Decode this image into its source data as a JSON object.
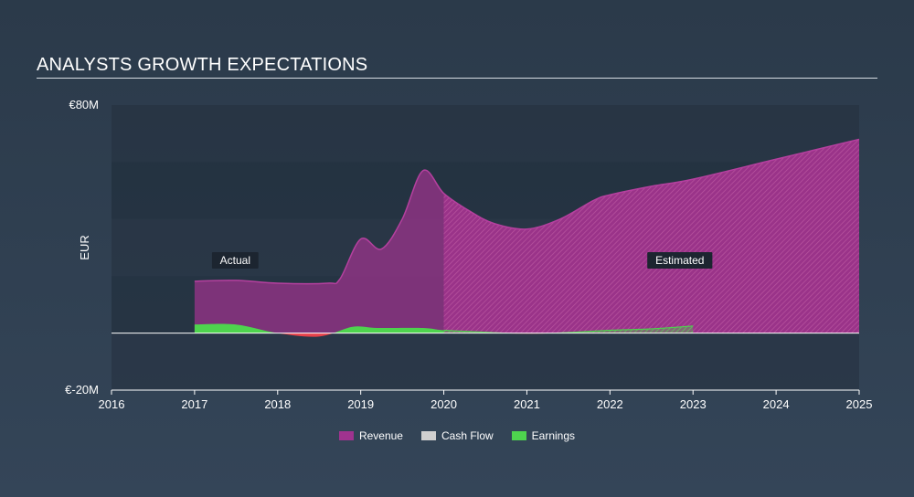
{
  "header": {
    "title": "ANALYSTS GROWTH EXPECTATIONS"
  },
  "colors": {
    "revenue": "#a0338f",
    "cash_flow": "#cfcfcf",
    "earnings": "#4ed34e",
    "negative": "#e8424a"
  },
  "chart_data": {
    "type": "area",
    "title": "ANALYSTS GROWTH EXPECTATIONS",
    "ylabel": "EUR",
    "xlabel": "",
    "xlim": [
      2016,
      2025
    ],
    "ylim": [
      -20,
      80
    ],
    "y_tick_labels": [
      {
        "value": 80,
        "label": "€80M"
      },
      {
        "value": -20,
        "label": "€-20M"
      }
    ],
    "x_ticks": [
      2016,
      2017,
      2018,
      2019,
      2020,
      2021,
      2022,
      2023,
      2024,
      2025
    ],
    "actual_end": 2020,
    "annotations": [
      {
        "label": "Actual",
        "x": 2017.5,
        "y": 25.5
      },
      {
        "label": "Estimated",
        "x": 2022.5,
        "y": 25.5
      }
    ],
    "series": [
      {
        "name": "Revenue",
        "points": [
          [
            2017,
            18.2
          ],
          [
            2017.5,
            18.5
          ],
          [
            2018,
            17.5
          ],
          [
            2018.6,
            17.5
          ],
          [
            2018.75,
            19
          ],
          [
            2019,
            33
          ],
          [
            2019.25,
            29.5
          ],
          [
            2019.5,
            40
          ],
          [
            2019.75,
            57
          ],
          [
            2020,
            49
          ],
          [
            2020.3,
            43
          ],
          [
            2020.6,
            38.5
          ],
          [
            2021,
            36.5
          ],
          [
            2021.4,
            40
          ],
          [
            2021.8,
            46.5
          ],
          [
            2022,
            48.5
          ],
          [
            2022.5,
            51.5
          ],
          [
            2023,
            54
          ],
          [
            2024,
            61
          ],
          [
            2025,
            68
          ]
        ]
      },
      {
        "name": "Cash Flow",
        "points": []
      },
      {
        "name": "Earnings",
        "points": [
          [
            2017,
            3
          ],
          [
            2017.5,
            3
          ],
          [
            2018,
            0
          ],
          [
            2018.5,
            -1.2
          ],
          [
            2018.9,
            2.2
          ],
          [
            2019.2,
            1.8
          ],
          [
            2019.75,
            1.8
          ],
          [
            2020,
            1
          ],
          [
            2020.5,
            0.3
          ],
          [
            2021,
            -0.3
          ],
          [
            2021.5,
            0.2
          ],
          [
            2022,
            1
          ],
          [
            2022.5,
            1.5
          ],
          [
            2023,
            2.5
          ]
        ]
      }
    ]
  },
  "legend": [
    {
      "name": "Revenue",
      "color": "#a0338f"
    },
    {
      "name": "Cash Flow",
      "color": "#cfcfcf"
    },
    {
      "name": "Earnings",
      "color": "#4ed34e"
    }
  ]
}
